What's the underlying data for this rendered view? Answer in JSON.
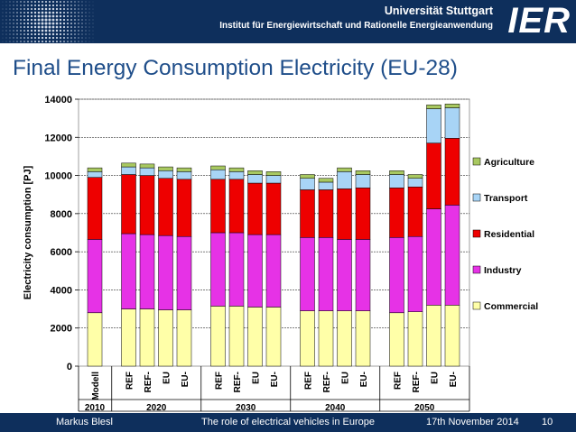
{
  "header": {
    "university": "Universität Stuttgart",
    "institute": "Institut für Energiewirtschaft und Rationelle Energieanwendung",
    "logo": "IER"
  },
  "slide_title": "Final Energy Consumption Electricity (EU-28)",
  "footer": {
    "author": "Markus Blesl",
    "talk": "The role of electrical vehicles in Europe",
    "date": "17th November 2014",
    "page": "10"
  },
  "colors": {
    "Commercial": "#ffffa8",
    "Industry": "#e632e6",
    "Residential": "#ee0000",
    "Transport": "#a8d4f6",
    "Agriculture": "#a8c860",
    "header_bg": "#0e2f5c",
    "title": "#1f4e8a"
  },
  "chart_data": {
    "type": "bar",
    "stacked": true,
    "title": "",
    "xlabel": "",
    "ylabel": "Electricity consumption [PJ]",
    "ylim": [
      0,
      14000
    ],
    "yticks": [
      0,
      2000,
      4000,
      6000,
      8000,
      10000,
      12000,
      14000
    ],
    "grid": true,
    "legend_position": "right",
    "groups": [
      {
        "label": "2010",
        "categories": [
          "Modell"
        ]
      },
      {
        "label": "2020",
        "categories": [
          "REF",
          "REF-",
          "EU",
          "EU-"
        ]
      },
      {
        "label": "2030",
        "categories": [
          "REF",
          "REF-",
          "EU",
          "EU-"
        ]
      },
      {
        "label": "2040",
        "categories": [
          "REF",
          "REF-",
          "EU",
          "EU-"
        ]
      },
      {
        "label": "2050",
        "categories": [
          "REF",
          "REF-",
          "EU",
          "EU-"
        ]
      }
    ],
    "series": [
      {
        "name": "Commercial",
        "values": [
          2800,
          3000,
          3000,
          2950,
          2950,
          3150,
          3150,
          3100,
          3100,
          2900,
          2900,
          2900,
          2900,
          2800,
          2850,
          3200,
          3200
        ]
      },
      {
        "name": "Industry",
        "values": [
          3850,
          3950,
          3900,
          3900,
          3850,
          3850,
          3850,
          3800,
          3800,
          3850,
          3850,
          3750,
          3750,
          3950,
          3950,
          5050,
          5250
        ]
      },
      {
        "name": "Residential",
        "values": [
          3250,
          3100,
          3100,
          3000,
          3000,
          2800,
          2800,
          2700,
          2700,
          2500,
          2500,
          2650,
          2700,
          2600,
          2600,
          3450,
          3500
        ]
      },
      {
        "name": "Transport",
        "values": [
          300,
          400,
          400,
          400,
          400,
          500,
          400,
          450,
          400,
          600,
          400,
          900,
          700,
          700,
          450,
          1800,
          1600
        ]
      },
      {
        "name": "Agriculture",
        "values": [
          200,
          200,
          200,
          200,
          200,
          200,
          200,
          200,
          200,
          200,
          200,
          200,
          200,
          200,
          200,
          200,
          200
        ]
      }
    ],
    "legend": [
      "Agriculture",
      "Transport",
      "Residential",
      "Industry",
      "Commercial"
    ]
  }
}
